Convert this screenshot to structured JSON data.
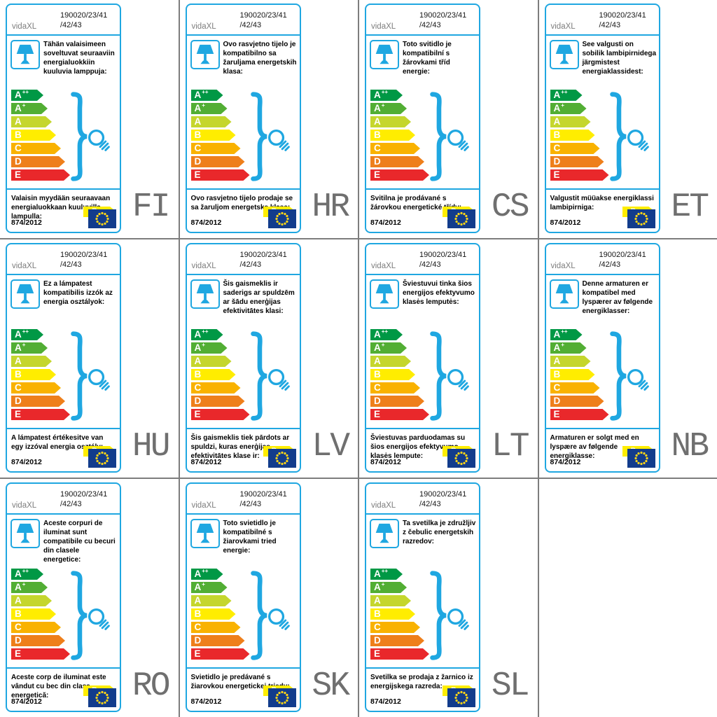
{
  "shared": {
    "brand": "vidaXL",
    "model_line1": "190020/23/41",
    "model_line2": "/42/43",
    "regulation": "874/2012",
    "sold_class": "B",
    "classes": [
      {
        "label": "A",
        "sup": "++",
        "color": "#009845"
      },
      {
        "label": "A",
        "sup": "+",
        "color": "#52ae34"
      },
      {
        "label": "A",
        "sup": "",
        "color": "#c5d62d"
      },
      {
        "label": "B",
        "sup": "",
        "color": "#ffed00"
      },
      {
        "label": "C",
        "sup": "",
        "color": "#f9b200"
      },
      {
        "label": "D",
        "sup": "",
        "color": "#ee7f1b"
      },
      {
        "label": "E",
        "sup": "",
        "color": "#e9282b"
      }
    ],
    "colors": {
      "accent_blue": "#1fa7e1",
      "eu_flag_blue": "#123c8c",
      "star_yellow": "#ffd617",
      "sold_class_yellow": "#ffed00",
      "grid_line_gray": "#7d7d7d",
      "language_code_gray": "#6f6f6f"
    },
    "icons": {
      "lamp_box": "table-lamp-icon",
      "bulb": "lightbulb-icon",
      "brace": "curly-brace-icon",
      "flag": "eu-flag-icon"
    }
  },
  "cells": [
    {
      "lang_code": "FI",
      "desc_top": "Tähän valaisimeen soveltuvat seuraaviin energialuokkiin kuuluvia lamppuja:",
      "desc_bottom": "Valaisin myydään seuraavaan energialuokkaan kuuluvilla lampulla:"
    },
    {
      "lang_code": "HR",
      "desc_top": "Ovo rasvjetno tijelo je kompatibilno sa žaruljama energetskih klasa:",
      "desc_bottom": "Ovo rasvjetno tijelo prodaje se sa žaruljom energetske klase:"
    },
    {
      "lang_code": "CS",
      "desc_top": "Toto svitidlo je kompatibilní s žárovkami tříd energie:",
      "desc_bottom": "Svitilna je prodávané s žárovkou energetické třídy:"
    },
    {
      "lang_code": "ET",
      "desc_top": "See valgusti on sobilik lambipirnidega järgmistest energiaklassidest:",
      "desc_bottom": "Valgustit müüakse energiklassi lambipirniga:"
    },
    {
      "lang_code": "HU",
      "desc_top": "Ez a lámpatest kompatibilis izzók az energia osztályok:",
      "desc_bottom": "A lámpatest értékesitve van egy izzóval energia osztály:"
    },
    {
      "lang_code": "LV",
      "desc_top": "Šis gaismeklis ir saderigs ar spuldzēm ar šādu enerģijas efektivitātes klasi:",
      "desc_bottom": "Šis gaismeklis tiek pārdots ar spuldzi, kuras enerģijas efektivitātes klase ir:"
    },
    {
      "lang_code": "LT",
      "desc_top": "Šviestuvui tinka šios energijos efektyvumo klasės lemputės:",
      "desc_bottom": "Šviestuvas parduodamas su šios energijos efektyvumo klasės lempute:"
    },
    {
      "lang_code": "NB",
      "desc_top": "Denne armaturen er kompatibel med lyspærer av følgende energiklasser:",
      "desc_bottom": "Armaturen er solgt med en lyspære av følgende energiklasse:"
    },
    {
      "lang_code": "RO",
      "desc_top": "Aceste corpuri de iluminat sunt compatibile cu becuri din clasele energetice:",
      "desc_bottom": "Aceste corp de iluminat este vândut cu bec din clasa energetică:"
    },
    {
      "lang_code": "SK",
      "desc_top": "Toto svietidlo je kompatibilné s žiarovkami tried energie:",
      "desc_bottom": "Svietidlo je predávané s žiarovkou energetickej triedy:"
    },
    {
      "lang_code": "SL",
      "desc_top": "Ta svetilka je združljiv z čebulic energetskih razredov:",
      "desc_bottom": "Svetilka se prodaja z žarnico iz energijskega razreda:"
    },
    {
      "lang_code": "",
      "empty": true
    }
  ]
}
